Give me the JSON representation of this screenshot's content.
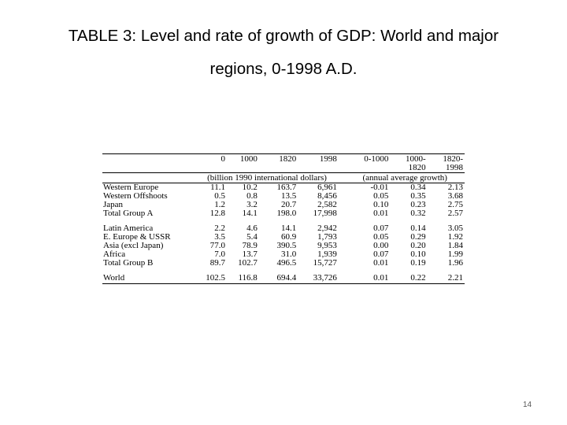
{
  "title": {
    "line1": "TABLE 3: Level and rate of growth of GDP: World and major",
    "line2": "regions, 0-1998 A.D."
  },
  "table": {
    "header_row1": [
      "0",
      "1000",
      "1820",
      "1998",
      "0-1000",
      "1000-",
      "1820-"
    ],
    "header_row2": [
      "1820",
      "1998"
    ],
    "unit_left": "(billion 1990 international dollars)",
    "unit_right": "(annual average growth)",
    "rows": [
      {
        "label": "Western Europe",
        "values": [
          "11.1",
          "10.2",
          "163.7",
          "6,961",
          "-0.01",
          "0.34",
          "2.13"
        ]
      },
      {
        "label": "Western Offshoots",
        "values": [
          "0.5",
          "0.8",
          "13.5",
          "8,456",
          "0.05",
          "0.35",
          "3.68"
        ]
      },
      {
        "label": "Japan",
        "values": [
          "1.2",
          "3.2",
          "20.7",
          "2,582",
          "0.10",
          "0.23",
          "2.75"
        ]
      },
      {
        "label": "Total Group A",
        "values": [
          "12.8",
          "14.1",
          "198.0",
          "17,998",
          "0.01",
          "0.32",
          "2.57"
        ]
      },
      {
        "label": "Latin America",
        "values": [
          "2.2",
          "4.6",
          "14.1",
          "2,942",
          "0.07",
          "0.14",
          "3.05"
        ]
      },
      {
        "label": "E. Europe & USSR",
        "values": [
          "3.5",
          "5.4",
          "60.9",
          "1,793",
          "0.05",
          "0.29",
          "1.92"
        ]
      },
      {
        "label": "Asia (excl Japan)",
        "values": [
          "77.0",
          "78.9",
          "390.5",
          "9,953",
          "0.00",
          "0.20",
          "1.84"
        ]
      },
      {
        "label": "Africa",
        "values": [
          "7.0",
          "13.7",
          "31.0",
          "1,939",
          "0.07",
          "0.10",
          "1.99"
        ]
      },
      {
        "label": "Total Group B",
        "values": [
          "89.7",
          "102.7",
          "496.5",
          "15,727",
          "0.01",
          "0.19",
          "1.96"
        ]
      },
      {
        "label": "World",
        "values": [
          "102.5",
          "116.8",
          "694.4",
          "33,726",
          "0.01",
          "0.22",
          "2.21"
        ]
      }
    ]
  },
  "page_number": "14"
}
